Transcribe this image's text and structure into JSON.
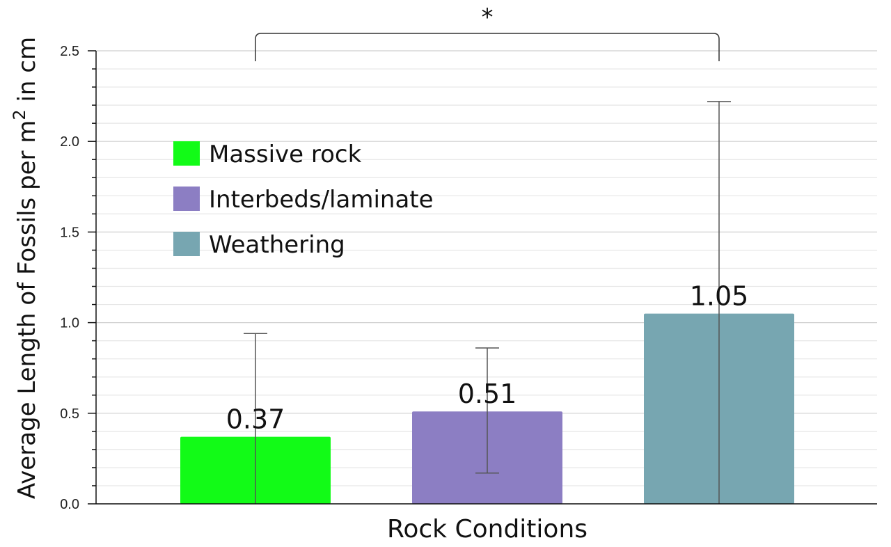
{
  "chart_data": {
    "type": "bar",
    "title": "",
    "xlabel": "Rock Conditions",
    "ylabel": "Average Length of Fossils per m",
    "ylabel_sup": "2",
    "ylabel_suffix": " in cm",
    "ylim": [
      0,
      2.5
    ],
    "yticks": [
      "0.0",
      "0.5",
      "1.0",
      "1.5",
      "2.0",
      "2.5"
    ],
    "grid": true,
    "legend_position": "upper-left",
    "series": [
      {
        "name": "Massive rock",
        "value": 0.37,
        "label": "0.37",
        "error_low": 0.0,
        "error_high": 0.94,
        "color": "#12fb17"
      },
      {
        "name": "Interbeds/laminate",
        "value": 0.51,
        "label": "0.51",
        "error_low": 0.17,
        "error_high": 0.86,
        "color": "#8c7ec3"
      },
      {
        "name": "Weathering",
        "value": 1.05,
        "label": "1.05",
        "error_low": 0.0,
        "error_high": 2.22,
        "color": "#77a6b1"
      }
    ],
    "significance": {
      "label": "*",
      "between": [
        "Massive rock",
        "Weathering"
      ]
    }
  }
}
